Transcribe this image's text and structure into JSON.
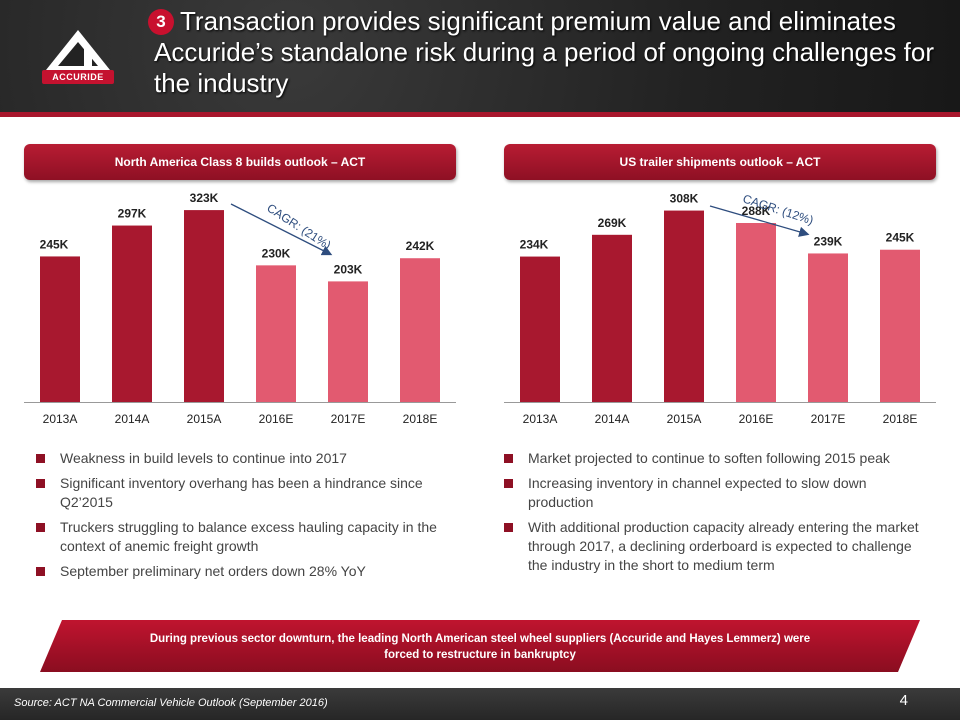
{
  "header": {
    "badge": "3",
    "title": "Transaction provides significant premium value and eliminates Accuride’s standalone risk during a period of ongoing challenges for the industry",
    "logo_text": "ACCURIDE"
  },
  "colors": {
    "dark_red": "#a8182f",
    "light_red": "#e25a70",
    "accent": "#c8102e",
    "arrow": "#2e4d7e"
  },
  "chart_data": [
    {
      "type": "bar",
      "title": "North America Class 8 builds outlook – ACT",
      "categories": [
        "2013A",
        "2014A",
        "2015A",
        "2016E",
        "2017E",
        "2018E"
      ],
      "values": [
        245,
        297,
        323,
        230,
        203,
        242
      ],
      "value_labels": [
        "245K",
        "297K",
        "323K",
        "230K",
        "203K",
        "242K"
      ],
      "annotation": "CAGR: (21%)",
      "ylim": [
        0,
        340
      ],
      "xlabel": "",
      "ylabel": ""
    },
    {
      "type": "bar",
      "title": "US trailer shipments outlook – ACT",
      "categories": [
        "2013A",
        "2014A",
        "2015A",
        "2016E",
        "2017E",
        "2018E"
      ],
      "values": [
        234,
        269,
        308,
        288,
        239,
        245
      ],
      "value_labels": [
        "234K",
        "269K",
        "308K",
        "288K",
        "239K",
        "245K"
      ],
      "annotation": "CAGR: (12%)",
      "ylim": [
        0,
        325
      ],
      "xlabel": "",
      "ylabel": ""
    }
  ],
  "left_bullets": [
    "Weakness in build levels to continue into 2017",
    "Significant inventory overhang has been a hindrance since Q2’2015",
    "Truckers struggling to balance excess hauling capacity in the context of anemic freight growth",
    "September preliminary net orders down 28% YoY"
  ],
  "right_bullets": [
    "Market projected to continue to soften following 2015 peak",
    "Increasing inventory in channel expected to slow down production",
    "With additional production capacity already entering the market through 2017, a declining orderboard is expected to challenge the industry in the short to medium term"
  ],
  "banner": {
    "line1": "During previous sector downturn, the leading North American steel wheel suppliers (Accuride and Hayes Lemmerz) were",
    "line2": "forced to restructure in bankruptcy"
  },
  "footer": {
    "source": "Source: ACT NA Commercial Vehicle Outlook (September 2016)",
    "page_number": "4"
  }
}
